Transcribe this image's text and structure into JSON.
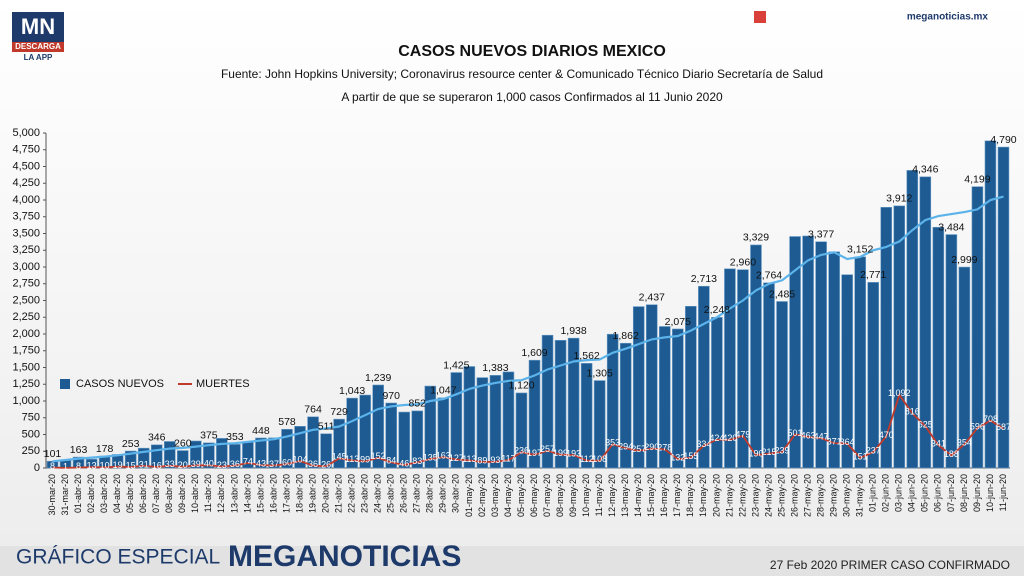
{
  "header": {
    "logo": "MN",
    "logo_sub": "DESCARGA",
    "logo_app": "LA APP",
    "site": "meganoticias.mx"
  },
  "chart_data": {
    "type": "bar",
    "title": "CASOS NUEVOS DIARIOS MEXICO",
    "subtitle": "Fuente: John Hopkins University; Coronavirus resource center & Comunicado Técnico Diario Secretaría de Salud",
    "note": "A partir de que se superaron 1,000 casos Confirmados al 11 Junio 2020",
    "categories": [
      "30-mar-20",
      "31-mar-20",
      "01-abr-20",
      "02-abr-20",
      "03-abr-20",
      "04-abr-20",
      "05-abr-20",
      "06-abr-20",
      "07-abr-20",
      "08-abr-20",
      "09-abr-20",
      "10-abr-20",
      "11-abr-20",
      "12-abr-20",
      "13-abr-20",
      "14-abr-20",
      "15-abr-20",
      "16-abr-20",
      "17-abr-20",
      "18-abr-20",
      "19-abr-20",
      "20-abr-20",
      "21-abr-20",
      "22-abr-20",
      "23-abr-20",
      "24-abr-20",
      "25-abr-20",
      "26-abr-20",
      "27-abr-20",
      "28-abr-20",
      "29-abr-20",
      "30-abr-20",
      "01-may-20",
      "02-may-20",
      "03-may-20",
      "04-may-20",
      "05-may-20",
      "06-may-20",
      "07-may-20",
      "08-may-20",
      "09-may-20",
      "10-may-20",
      "11-may-20",
      "12-may-20",
      "13-may-20",
      "14-may-20",
      "15-may-20",
      "16-may-20",
      "17-may-20",
      "18-may-20",
      "19-may-20",
      "20-may-20",
      "21-may-20",
      "22-may-20",
      "23-may-20",
      "24-may-20",
      "25-may-20",
      "26-may-20",
      "27-may-20",
      "28-may-20",
      "29-may-20",
      "30-may-20",
      "31-may-20",
      "01-jun-20",
      "02-jun-20",
      "03-jun-20",
      "04-jun-20",
      "05-jun-20",
      "06-jun-20",
      "07-jun-20",
      "08-jun-20",
      "09-jun-20",
      "10-jun-20",
      "11-jun-20"
    ],
    "series": [
      {
        "name": "CASOS NUEVOS",
        "type": "bar",
        "color": "#1d5b92",
        "values": [
          101,
          121,
          163,
          132,
          178,
          202,
          253,
          296,
          346,
          396,
          260,
          403,
          375,
          442,
          353,
          385,
          448,
          450,
          578,
          622,
          764,
          511,
          729,
          1043,
          1089,
          1239,
          970,
          835,
          852,
          1223,
          1047,
          1425,
          1515,
          1349,
          1383,
          1434,
          1120,
          1609,
          1982,
          1906,
          1938,
          1562,
          1305,
          1997,
          1862,
          2409,
          2437,
          2112,
          2075,
          2414,
          2713,
          2248,
          2973,
          2960,
          3329,
          2764,
          2485,
          3455,
          3463,
          3377,
          3227,
          2885,
          3152,
          2771,
          3891,
          3912,
          4442,
          4346,
          3593,
          3484,
          2999,
          4199,
          4883,
          4790
        ],
        "value_labels": [
          "101",
          null,
          "163",
          null,
          "178",
          null,
          "253",
          null,
          "346",
          null,
          "260",
          null,
          "375",
          null,
          "353",
          null,
          "448",
          null,
          "578",
          null,
          "764",
          "511",
          "729",
          "1,043",
          null,
          "1,239",
          "970",
          null,
          "852",
          null,
          "1,047",
          "1,425",
          null,
          null,
          "1,383",
          null,
          "1,120",
          "1,609",
          null,
          null,
          "1,938",
          "1,562",
          "1,305",
          null,
          "1,862",
          null,
          "2,437",
          null,
          "2,075",
          null,
          "2,713",
          "2,248",
          null,
          "2,960",
          "3,329",
          "2,764",
          "2,485",
          null,
          null,
          "3,377",
          null,
          null,
          "3,152",
          "2,771",
          null,
          "3,912",
          null,
          "4,346",
          null,
          "3,484",
          "2,999",
          "4,199",
          null,
          "4,790"
        ]
      },
      {
        "name": "MUERTES",
        "type": "line",
        "color": "#c0392b",
        "values": [
          8,
          1,
          8,
          13,
          10,
          19,
          15,
          31,
          16,
          33,
          20,
          39,
          40,
          23,
          36,
          74,
          43,
          37,
          60,
          104,
          36,
          26,
          145,
          113,
          99,
          152,
          84,
          46,
          83,
          135,
          163,
          127,
          113,
          89,
          93,
          117,
          236,
          197,
          257,
          199,
          193,
          112,
          108,
          353,
          294,
          257,
          290,
          278,
          132,
          155,
          334,
          424,
          420,
          479,
          190,
          215,
          239,
          501,
          463,
          447,
          371,
          364,
          151,
          237,
          470,
          1092,
          816,
          625,
          341,
          188,
          354,
          596,
          708,
          587
        ],
        "value_labels": [
          "8",
          "1",
          "8",
          "13",
          "10",
          "19",
          "15",
          "31",
          "16",
          "33",
          "20",
          "39",
          "40",
          "23",
          "36",
          "74",
          "43",
          "37",
          "60",
          "104",
          "36",
          "26",
          "145",
          "113",
          "99",
          "152",
          "84",
          "46",
          "83",
          "135",
          "163",
          "127",
          "113",
          "89",
          "93",
          "117",
          "236",
          "197",
          "257",
          "199",
          "193",
          "112",
          "108",
          "353",
          "294",
          "257",
          "290",
          "278",
          "132",
          "155",
          "334",
          "424",
          "420",
          "479",
          "190",
          "215",
          "239",
          "501",
          "463",
          "447",
          "371",
          "364",
          "151",
          "237",
          "470",
          "1,092",
          "816",
          "625",
          "341",
          "188",
          "354",
          "596",
          "708",
          "587"
        ]
      }
    ],
    "trend": {
      "color": "#5cb3ea",
      "values": [
        100,
        120,
        140,
        155,
        170,
        190,
        215,
        240,
        265,
        290,
        300,
        320,
        340,
        360,
        370,
        390,
        410,
        430,
        470,
        520,
        570,
        590,
        620,
        700,
        790,
        880,
        920,
        940,
        950,
        1000,
        1030,
        1100,
        1180,
        1230,
        1270,
        1300,
        1310,
        1380,
        1470,
        1530,
        1590,
        1610,
        1620,
        1720,
        1780,
        1850,
        1920,
        1950,
        1970,
        2050,
        2150,
        2250,
        2380,
        2500,
        2650,
        2750,
        2800,
        2950,
        3100,
        3180,
        3220,
        3120,
        3150,
        3250,
        3300,
        3380,
        3550,
        3700,
        3760,
        3790,
        3820,
        3860,
        4000,
        4050
      ]
    },
    "ylim": [
      0,
      5000
    ],
    "yticks": [
      0,
      250,
      500,
      750,
      {
        "value": 1000,
        "label": "1,000"
      },
      {
        "value": 1250,
        "label": "1,250"
      },
      {
        "value": 1500,
        "label": "1,500"
      },
      {
        "value": 1750,
        "label": "1,750"
      },
      {
        "value": 2000,
        "label": "2,000"
      },
      {
        "value": 2250,
        "label": "2,250"
      },
      {
        "value": 2500,
        "label": "2,500"
      },
      {
        "value": 2750,
        "label": "2,750"
      },
      {
        "value": 3000,
        "label": "3,000"
      },
      {
        "value": 3250,
        "label": "3,250"
      },
      {
        "value": 3500,
        "label": "3,500"
      },
      {
        "value": 3750,
        "label": "3,750"
      },
      {
        "value": 4000,
        "label": "4,000"
      },
      {
        "value": 4250,
        "label": "4,250"
      },
      {
        "value": 4500,
        "label": "4,500"
      },
      {
        "value": 4750,
        "label": "4,750"
      },
      {
        "value": 5000,
        "label": "5,000"
      }
    ],
    "grid": false,
    "legend": "left"
  },
  "footer": {
    "left": "GRÁFICO ESPECIAL",
    "brand": "MEGANOTICIAS",
    "right": "27 Feb 2020 PRIMER CASO CONFIRMADO"
  }
}
